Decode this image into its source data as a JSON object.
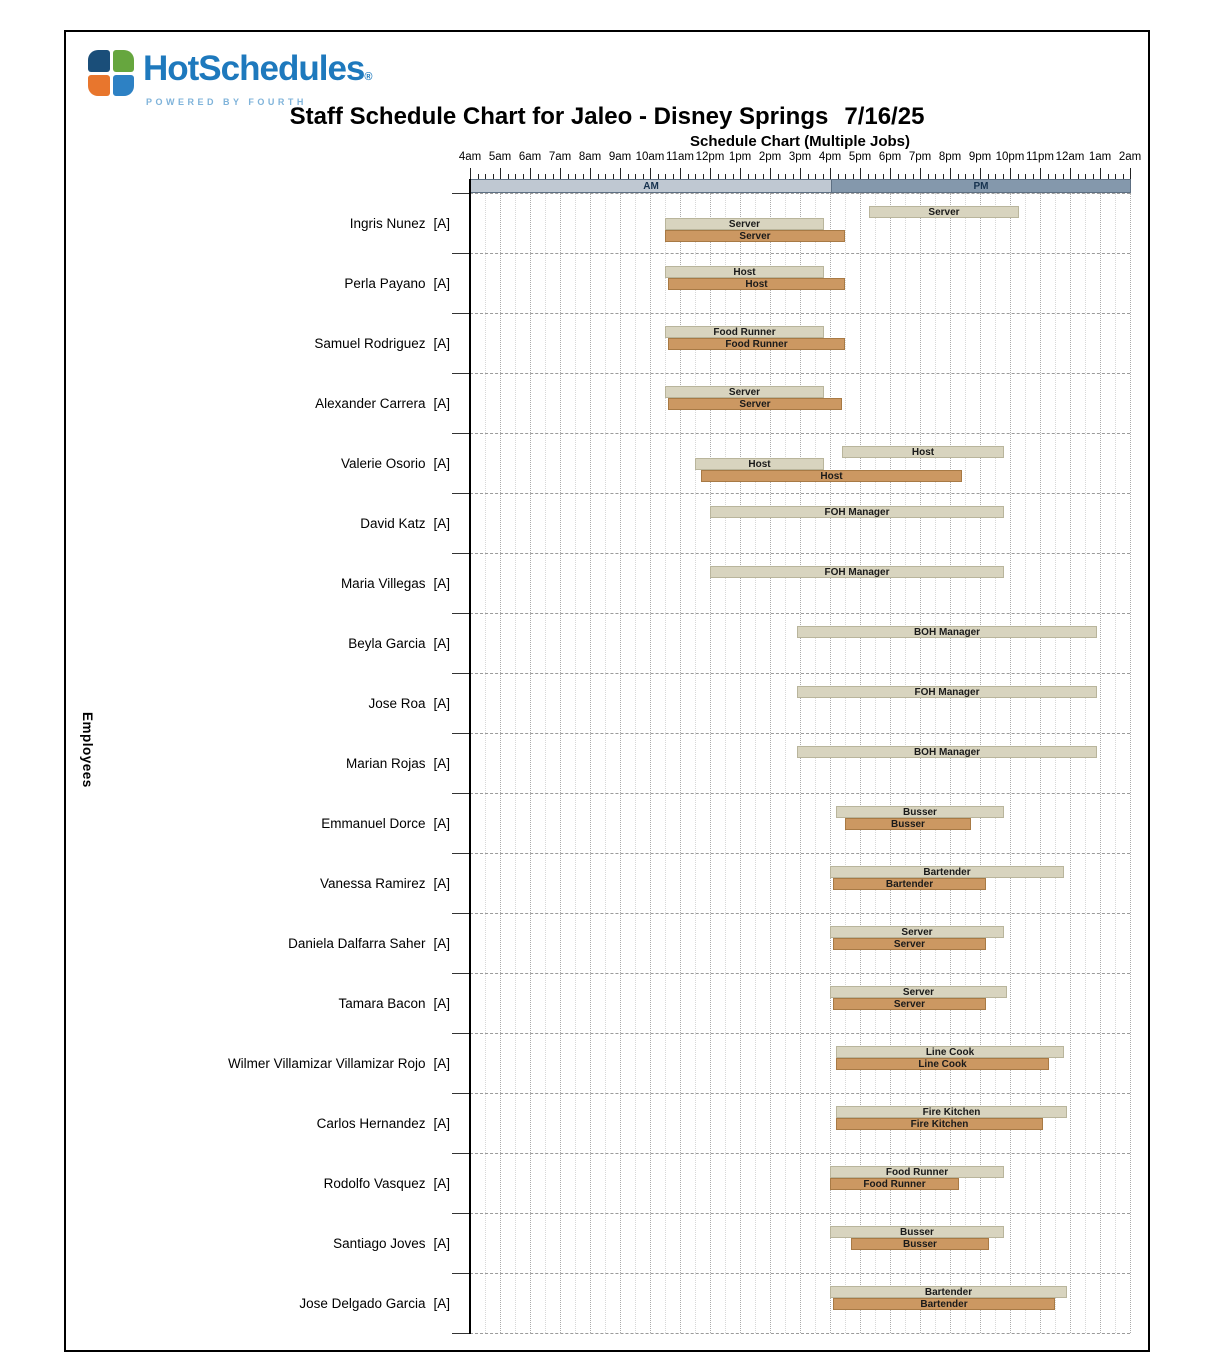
{
  "logo": {
    "brand": "HotSchedules",
    "registered": "®",
    "tagline": "POWERED BY FOURTH"
  },
  "header": {
    "title": "Staff Schedule Chart for Jaleo - Disney Springs",
    "date": "7/16/25",
    "subtitle": "Schedule Chart (Multiple Jobs)"
  },
  "y_axis_label": "Employees",
  "timeline": {
    "hour_labels": [
      "4am",
      "5am",
      "6am",
      "7am",
      "8am",
      "9am",
      "10am",
      "11am",
      "12pm",
      "1pm",
      "2pm",
      "3pm",
      "4pm",
      "5pm",
      "6pm",
      "7pm",
      "8pm",
      "9pm",
      "10pm",
      "11pm",
      "12am",
      "1am",
      "2am"
    ],
    "am_label": "AM",
    "pm_label": "PM",
    "axis_start": "4am",
    "axis_end": "2am",
    "total_hours": 22,
    "am_band_hours": 12
  },
  "colors": {
    "scheduled_bar": "#d8d4bf",
    "actual_bar": "#cc9862",
    "am_band": "#bfc8d2",
    "pm_band": "#8498ac",
    "brand_blue": "#1e79bd"
  },
  "chart_data": {
    "type": "gantt",
    "title": "Schedule Chart (Multiple Jobs)",
    "x_axis": {
      "start": "4am",
      "end": "2am",
      "hours_span": 22,
      "hour_offset_origin": "hours after 4am"
    },
    "bar_styles": [
      "scheduled",
      "actual"
    ],
    "rows": [
      {
        "employee": "Ingris Nunez",
        "badge": "[A]",
        "bars": [
          {
            "label": "Server",
            "style": "scheduled",
            "start": 13.3,
            "end": 18.3
          },
          {
            "label": "Server",
            "style": "scheduled",
            "start": 6.5,
            "end": 11.8
          },
          {
            "label": "Server",
            "style": "actual",
            "start": 6.5,
            "end": 12.5
          }
        ]
      },
      {
        "employee": "Perla Payano",
        "badge": "[A]",
        "bars": [
          {
            "label": "Host",
            "style": "scheduled",
            "start": 6.5,
            "end": 11.8
          },
          {
            "label": "Host",
            "style": "actual",
            "start": 6.6,
            "end": 12.5
          }
        ]
      },
      {
        "employee": "Samuel Rodriguez",
        "badge": "[A]",
        "bars": [
          {
            "label": "Food Runner",
            "style": "scheduled",
            "start": 6.5,
            "end": 11.8
          },
          {
            "label": "Food Runner",
            "style": "actual",
            "start": 6.6,
            "end": 12.5
          }
        ]
      },
      {
        "employee": "Alexander Carrera",
        "badge": "[A]",
        "bars": [
          {
            "label": "Server",
            "style": "scheduled",
            "start": 6.5,
            "end": 11.8
          },
          {
            "label": "Server",
            "style": "actual",
            "start": 6.6,
            "end": 12.4
          }
        ]
      },
      {
        "employee": "Valerie Osorio",
        "badge": "[A]",
        "bars": [
          {
            "label": "Host",
            "style": "scheduled",
            "start": 12.4,
            "end": 17.8
          },
          {
            "label": "Host",
            "style": "scheduled",
            "start": 7.5,
            "end": 11.8
          },
          {
            "label": "Host",
            "style": "actual",
            "start": 7.7,
            "end": 16.4
          }
        ]
      },
      {
        "employee": "David Katz",
        "badge": "[A]",
        "bars": [
          {
            "label": "FOH Manager",
            "style": "scheduled",
            "start": 8.0,
            "end": 17.8
          }
        ]
      },
      {
        "employee": "Maria Villegas",
        "badge": "[A]",
        "bars": [
          {
            "label": "FOH Manager",
            "style": "scheduled",
            "start": 8.0,
            "end": 17.8
          }
        ]
      },
      {
        "employee": "Beyla Garcia",
        "badge": "[A]",
        "bars": [
          {
            "label": "BOH Manager",
            "style": "scheduled",
            "start": 10.9,
            "end": 20.9
          }
        ]
      },
      {
        "employee": "Jose Roa",
        "badge": "[A]",
        "bars": [
          {
            "label": "FOH Manager",
            "style": "scheduled",
            "start": 10.9,
            "end": 20.9
          }
        ]
      },
      {
        "employee": "Marian Rojas",
        "badge": "[A]",
        "bars": [
          {
            "label": "BOH Manager",
            "style": "scheduled",
            "start": 10.9,
            "end": 20.9
          }
        ]
      },
      {
        "employee": "Emmanuel Dorce",
        "badge": "[A]",
        "bars": [
          {
            "label": "Busser",
            "style": "scheduled",
            "start": 12.2,
            "end": 17.8
          },
          {
            "label": "Busser",
            "style": "actual",
            "start": 12.5,
            "end": 16.7
          }
        ]
      },
      {
        "employee": "Vanessa Ramirez",
        "badge": "[A]",
        "bars": [
          {
            "label": "Bartender",
            "style": "scheduled",
            "start": 12.0,
            "end": 19.8
          },
          {
            "label": "Bartender",
            "style": "actual",
            "start": 12.1,
            "end": 17.2
          }
        ]
      },
      {
        "employee": "Daniela Dalfarra Saher",
        "badge": "[A]",
        "bars": [
          {
            "label": "Server",
            "style": "scheduled",
            "start": 12.0,
            "end": 17.8
          },
          {
            "label": "Server",
            "style": "actual",
            "start": 12.1,
            "end": 17.2
          }
        ]
      },
      {
        "employee": "Tamara Bacon",
        "badge": "[A]",
        "bars": [
          {
            "label": "Server",
            "style": "scheduled",
            "start": 12.0,
            "end": 17.9
          },
          {
            "label": "Server",
            "style": "actual",
            "start": 12.1,
            "end": 17.2
          }
        ]
      },
      {
        "employee": "Wilmer Villamizar Villamizar Rojo",
        "badge": "[A]",
        "bars": [
          {
            "label": "Line Cook",
            "style": "scheduled",
            "start": 12.2,
            "end": 19.8
          },
          {
            "label": "Line Cook",
            "style": "actual",
            "start": 12.2,
            "end": 19.3
          }
        ]
      },
      {
        "employee": "Carlos Hernandez",
        "badge": "[A]",
        "bars": [
          {
            "label": "Fire Kitchen",
            "style": "scheduled",
            "start": 12.2,
            "end": 19.9
          },
          {
            "label": "Fire Kitchen",
            "style": "actual",
            "start": 12.2,
            "end": 19.1
          }
        ]
      },
      {
        "employee": "Rodolfo Vasquez",
        "badge": "[A]",
        "bars": [
          {
            "label": "Food Runner",
            "style": "scheduled",
            "start": 12.0,
            "end": 17.8
          },
          {
            "label": "Food Runner",
            "style": "actual",
            "start": 12.0,
            "end": 16.3
          }
        ]
      },
      {
        "employee": "Santiago Joves",
        "badge": "[A]",
        "bars": [
          {
            "label": "Busser",
            "style": "scheduled",
            "start": 12.0,
            "end": 17.8
          },
          {
            "label": "Busser",
            "style": "actual",
            "start": 12.7,
            "end": 17.3
          }
        ]
      },
      {
        "employee": "Jose Delgado Garcia",
        "badge": "[A]",
        "bars": [
          {
            "label": "Bartender",
            "style": "scheduled",
            "start": 12.0,
            "end": 19.9
          },
          {
            "label": "Bartender",
            "style": "actual",
            "start": 12.1,
            "end": 19.5
          }
        ]
      }
    ]
  }
}
